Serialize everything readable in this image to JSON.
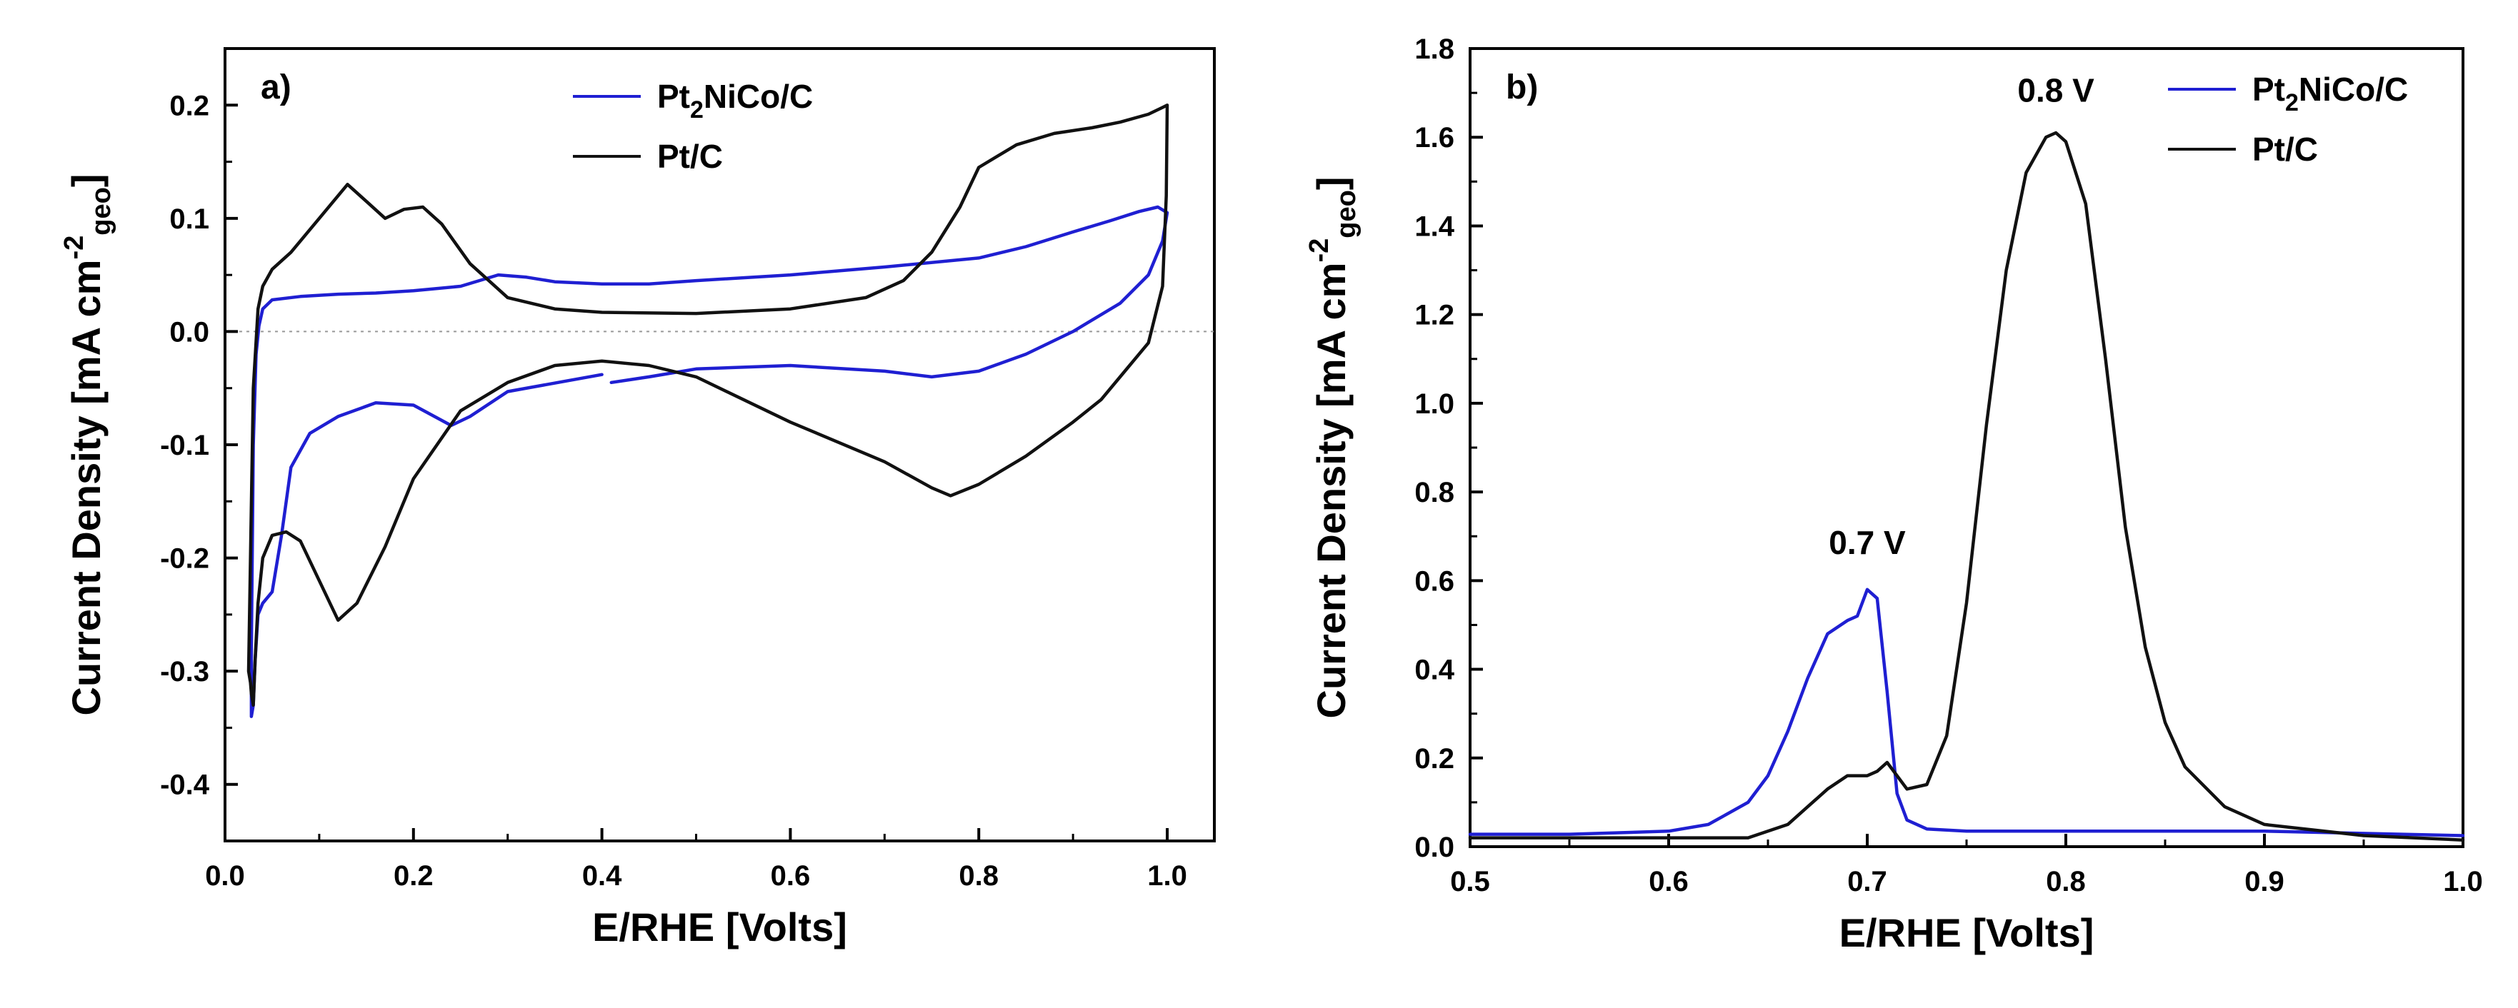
{
  "chart_data": [
    {
      "type": "line",
      "panel_label": "a)",
      "xlabel": "E/RHE [Volts]",
      "ylabel": "Current Density [mA cm",
      "ylabel_sup": "-2",
      "ylabel_sub": "geo",
      "ylabel_end": "]",
      "xlim": [
        0.0,
        1.05
      ],
      "ylim": [
        -0.45,
        0.25
      ],
      "xticks": [
        "0.0",
        "0.2",
        "0.4",
        "0.6",
        "0.8",
        "1.0"
      ],
      "yticks": [
        "0.2",
        "0.1",
        "0.0",
        "-0.1",
        "-0.2",
        "-0.3",
        "-0.4"
      ],
      "ytick_values": [
        0.2,
        0.1,
        0.0,
        -0.1,
        -0.2,
        -0.3,
        -0.4
      ],
      "xtick_values": [
        0.0,
        0.2,
        0.4,
        0.6,
        0.8,
        1.0
      ],
      "zero_line": true,
      "legend_position": "top-center",
      "series": [
        {
          "name_main": "Pt",
          "name_sub": "2",
          "name_rest": "NiCo/C",
          "color": "#1f1fd2",
          "x": [
            0.4,
            0.3,
            0.26,
            0.24,
            0.2,
            0.16,
            0.12,
            0.09,
            0.07,
            0.06,
            0.05,
            0.045,
            0.04,
            0.035,
            0.032,
            0.03,
            0.028,
            0.028,
            0.03,
            0.033,
            0.036,
            0.04,
            0.05,
            0.08,
            0.12,
            0.16,
            0.2,
            0.25,
            0.29,
            0.32,
            0.35,
            0.4,
            0.45,
            0.5,
            0.6,
            0.7,
            0.8,
            0.85,
            0.9,
            0.94,
            0.97,
            0.99,
            1.0,
            0.995,
            0.98,
            0.95,
            0.9,
            0.85,
            0.8,
            0.75,
            0.7,
            0.6,
            0.5,
            0.45,
            0.41
          ],
          "y": [
            -0.038,
            -0.053,
            -0.075,
            -0.083,
            -0.065,
            -0.063,
            -0.075,
            -0.09,
            -0.12,
            -0.18,
            -0.23,
            -0.235,
            -0.24,
            -0.25,
            -0.29,
            -0.33,
            -0.34,
            -0.28,
            -0.1,
            -0.02,
            0.005,
            0.02,
            0.028,
            0.031,
            0.033,
            0.034,
            0.036,
            0.04,
            0.05,
            0.048,
            0.044,
            0.042,
            0.042,
            0.045,
            0.05,
            0.057,
            0.065,
            0.075,
            0.088,
            0.098,
            0.106,
            0.11,
            0.105,
            0.08,
            0.05,
            0.025,
            0.0,
            -0.02,
            -0.035,
            -0.04,
            -0.035,
            -0.03,
            -0.033,
            -0.04,
            -0.045
          ]
        },
        {
          "name_main": "Pt/C",
          "name_sub": "",
          "name_rest": "",
          "color": "#111111",
          "x": [
            0.025,
            0.03,
            0.035,
            0.04,
            0.05,
            0.07,
            0.1,
            0.13,
            0.15,
            0.17,
            0.19,
            0.21,
            0.23,
            0.26,
            0.3,
            0.35,
            0.4,
            0.5,
            0.6,
            0.68,
            0.72,
            0.75,
            0.78,
            0.8,
            0.84,
            0.88,
            0.92,
            0.95,
            0.98,
            0.995,
            1.0,
            0.999,
            0.995,
            0.98,
            0.96,
            0.93,
            0.9,
            0.85,
            0.8,
            0.77,
            0.75,
            0.7,
            0.6,
            0.5,
            0.45,
            0.4,
            0.35,
            0.3,
            0.25,
            0.2,
            0.17,
            0.14,
            0.12,
            0.1,
            0.08,
            0.065,
            0.05,
            0.04,
            0.035,
            0.032,
            0.03,
            0.028,
            0.027,
            0.025
          ],
          "y": [
            -0.3,
            -0.05,
            0.02,
            0.04,
            0.055,
            0.07,
            0.1,
            0.13,
            0.115,
            0.1,
            0.108,
            0.11,
            0.095,
            0.06,
            0.03,
            0.02,
            0.017,
            0.016,
            0.02,
            0.03,
            0.045,
            0.07,
            0.11,
            0.145,
            0.165,
            0.175,
            0.18,
            0.185,
            0.192,
            0.198,
            0.2,
            0.12,
            0.04,
            -0.01,
            -0.03,
            -0.06,
            -0.08,
            -0.11,
            -0.135,
            -0.145,
            -0.138,
            -0.115,
            -0.08,
            -0.04,
            -0.03,
            -0.026,
            -0.03,
            -0.045,
            -0.07,
            -0.13,
            -0.19,
            -0.24,
            -0.255,
            -0.22,
            -0.185,
            -0.177,
            -0.18,
            -0.2,
            -0.24,
            -0.29,
            -0.33,
            -0.32,
            -0.31,
            -0.3
          ]
        }
      ]
    },
    {
      "type": "line",
      "panel_label": "b)",
      "xlabel": "E/RHE [Volts]",
      "ylabel": "Current Density [mA cm",
      "ylabel_sup": "-2",
      "ylabel_sub": "geo",
      "ylabel_end": "]",
      "xlim": [
        0.5,
        1.0
      ],
      "ylim": [
        0.0,
        1.8
      ],
      "xticks": [
        "0.5",
        "0.6",
        "0.7",
        "0.8",
        "0.9",
        "1.0"
      ],
      "xtick_values": [
        0.5,
        0.6,
        0.7,
        0.8,
        0.9,
        1.0
      ],
      "yticks": [
        "0.0",
        "0.2",
        "0.4",
        "0.6",
        "0.8",
        "1.0",
        "1.2",
        "1.4",
        "1.6",
        "1.8"
      ],
      "ytick_values": [
        0.0,
        0.2,
        0.4,
        0.6,
        0.8,
        1.0,
        1.2,
        1.4,
        1.6,
        1.8
      ],
      "legend_position": "top-right",
      "annotations": [
        {
          "text": "0.7 V",
          "x": 0.7,
          "y": 0.66
        },
        {
          "text": "0.8 V",
          "x": 0.795,
          "y": 1.68
        }
      ],
      "series": [
        {
          "name_main": "Pt",
          "name_sub": "2",
          "name_rest": "NiCo/C",
          "color": "#1f1fd2",
          "x": [
            0.5,
            0.55,
            0.6,
            0.62,
            0.64,
            0.65,
            0.66,
            0.67,
            0.68,
            0.69,
            0.695,
            0.7,
            0.705,
            0.71,
            0.715,
            0.72,
            0.73,
            0.75,
            0.8,
            0.9,
            1.0
          ],
          "y": [
            0.028,
            0.028,
            0.035,
            0.05,
            0.1,
            0.16,
            0.26,
            0.38,
            0.48,
            0.51,
            0.52,
            0.58,
            0.56,
            0.35,
            0.12,
            0.06,
            0.04,
            0.035,
            0.035,
            0.035,
            0.025
          ]
        },
        {
          "name_main": "Pt/C",
          "name_sub": "",
          "name_rest": "",
          "color": "#111111",
          "x": [
            0.5,
            0.55,
            0.6,
            0.62,
            0.64,
            0.66,
            0.67,
            0.68,
            0.69,
            0.7,
            0.705,
            0.71,
            0.72,
            0.73,
            0.74,
            0.75,
            0.76,
            0.77,
            0.78,
            0.79,
            0.795,
            0.8,
            0.81,
            0.82,
            0.83,
            0.84,
            0.85,
            0.86,
            0.88,
            0.9,
            0.95,
            1.0
          ],
          "y": [
            0.02,
            0.02,
            0.02,
            0.02,
            0.02,
            0.05,
            0.09,
            0.13,
            0.16,
            0.16,
            0.17,
            0.19,
            0.13,
            0.14,
            0.25,
            0.55,
            0.95,
            1.3,
            1.52,
            1.6,
            1.61,
            1.59,
            1.45,
            1.1,
            0.72,
            0.45,
            0.28,
            0.18,
            0.09,
            0.05,
            0.025,
            0.015
          ]
        }
      ]
    }
  ]
}
